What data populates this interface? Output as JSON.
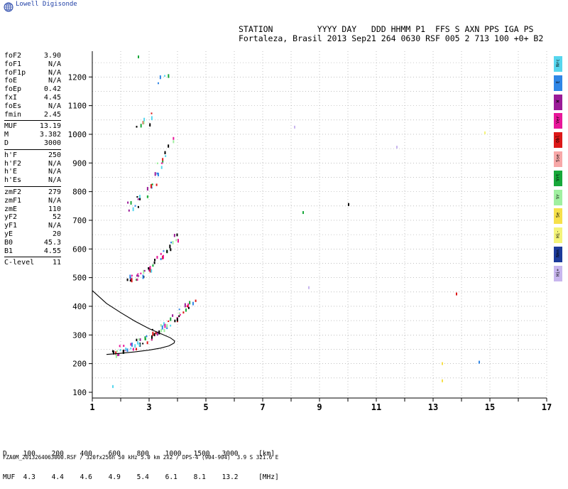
{
  "brand": "Lowell Digisonde",
  "header": {
    "line1": "STATION         YYYY DAY   DDD HHMM P1  FFS S AXN PPS IGA PS",
    "line2": "Fortaleza, Brasil 2013 Sep21 264 0630 RSF 005 2 713 100 +0+ B2"
  },
  "params": [
    {
      "k": "foF2",
      "v": "3.90"
    },
    {
      "k": "foF1",
      "v": "N/A"
    },
    {
      "k": "foF1p",
      "v": "N/A"
    },
    {
      "k": "foE",
      "v": "N/A"
    },
    {
      "k": "foEp",
      "v": "0.42"
    },
    {
      "k": "fxI",
      "v": "4.45"
    },
    {
      "k": "foEs",
      "v": "N/A"
    },
    {
      "k": "fmin",
      "v": "2.45"
    },
    {
      "sep": true
    },
    {
      "k": "MUF",
      "v": "13.19"
    },
    {
      "k": "M",
      "v": "3.382"
    },
    {
      "k": "D",
      "v": "3000"
    },
    {
      "sep": true
    },
    {
      "k": "h'F",
      "v": "250"
    },
    {
      "k": "h'F2",
      "v": "N/A"
    },
    {
      "k": "h'E",
      "v": "N/A"
    },
    {
      "k": "h'Es",
      "v": "N/A"
    },
    {
      "sep": true
    },
    {
      "k": "zmF2",
      "v": "279"
    },
    {
      "k": "zmF1",
      "v": "N/A"
    },
    {
      "k": "zmE",
      "v": "110"
    },
    {
      "k": "yF2",
      "v": "52"
    },
    {
      "k": "yF1",
      "v": "N/A"
    },
    {
      "k": "yE",
      "v": "20"
    },
    {
      "k": "B0",
      "v": "45.3"
    },
    {
      "k": "B1",
      "v": "4.55"
    },
    {
      "sep": true
    },
    {
      "k": "C-level",
      "v": "11"
    }
  ],
  "legend": [
    {
      "label": "Nrc",
      "color": "#57d6ee"
    },
    {
      "label": "E",
      "color": "#2f86e6"
    },
    {
      "label": "W",
      "color": "#9a1b97"
    },
    {
      "label": "Ver",
      "color": "#e8179a"
    },
    {
      "label": "Obl",
      "color": "#dd1818"
    },
    {
      "label": "Sse",
      "color": "#f7a8a8"
    },
    {
      "label": "Vrt",
      "color": "#18a83a"
    },
    {
      "label": "Vr",
      "color": "#a0f0a0"
    },
    {
      "label": "Se",
      "color": "#f6e04a"
    },
    {
      "label": "Hi-",
      "color": "#f4f47a"
    },
    {
      "label": "Nmn",
      "color": "#1c3a9a"
    },
    {
      "label": "Hi+",
      "color": "#c8b6ee"
    }
  ],
  "muf_table": {
    "d_label": "D",
    "d_values": [
      "100",
      "200",
      "400",
      "600",
      "800",
      "1000",
      "1500",
      "3000"
    ],
    "d_unit": "[km]",
    "muf_label": "MUF",
    "muf_values": [
      "4.3",
      "4.4",
      "4.6",
      "4.9",
      "5.4",
      "6.1",
      "8.1",
      "13.2"
    ],
    "muf_unit": "[MHz]"
  },
  "footer": "FZA0M_2013264063000.RSF / 320fx256h 50 kHz 5.0 km 2x2 / DPS-4 (904-904)  3.9 S 321.6 E",
  "chart_data": {
    "type": "scatter",
    "xlim": [
      1,
      17
    ],
    "ylim": [
      80,
      1290
    ],
    "x_ticks": [
      1,
      3,
      5,
      7,
      9,
      11,
      13,
      15,
      17
    ],
    "y_ticks": [
      100,
      200,
      300,
      400,
      500,
      600,
      700,
      800,
      900,
      1000,
      1100,
      1200
    ],
    "grid": true,
    "trace_profile": [
      [
        1.5,
        232
      ],
      [
        2.0,
        236
      ],
      [
        2.5,
        241
      ],
      [
        3.0,
        247
      ],
      [
        3.4,
        254
      ],
      [
        3.7,
        262
      ],
      [
        3.88,
        272
      ],
      [
        3.9,
        279
      ],
      [
        3.75,
        290
      ],
      [
        3.4,
        305
      ],
      [
        3.0,
        322
      ],
      [
        2.5,
        348
      ],
      [
        2.0,
        378
      ],
      [
        1.5,
        410
      ],
      [
        1.0,
        455
      ]
    ],
    "echo_traces": [
      {
        "f0": 1.7,
        "f1": 4.5,
        "h0": 245,
        "h1": 420,
        "n": 70
      },
      {
        "f0": 2.2,
        "f1": 4.0,
        "h0": 495,
        "h1": 650,
        "n": 40
      },
      {
        "f0": 2.3,
        "f1": 3.8,
        "h0": 750,
        "h1": 990,
        "n": 30
      },
      {
        "f0": 2.6,
        "f1": 3.0,
        "h0": 1030,
        "h1": 1070,
        "n": 8
      },
      {
        "f0": 3.4,
        "f1": 3.6,
        "h0": 1190,
        "h1": 1220,
        "n": 4
      }
    ],
    "outliers": [
      {
        "x": 1.7,
        "y": 125,
        "color": "#57d6ee"
      },
      {
        "x": 8.1,
        "y": 1030,
        "color": "#c8b6ee"
      },
      {
        "x": 8.4,
        "y": 732,
        "color": "#18a83a"
      },
      {
        "x": 8.6,
        "y": 470,
        "color": "#c8b6ee"
      },
      {
        "x": 10.0,
        "y": 760,
        "color": "#000000"
      },
      {
        "x": 11.7,
        "y": 960,
        "color": "#c8b6ee"
      },
      {
        "x": 13.3,
        "y": 205,
        "color": "#f6e04a"
      },
      {
        "x": 13.3,
        "y": 145,
        "color": "#f6e04a"
      },
      {
        "x": 13.8,
        "y": 448,
        "color": "#dd1818"
      },
      {
        "x": 14.6,
        "y": 210,
        "color": "#2f86e6"
      },
      {
        "x": 14.8,
        "y": 1010,
        "color": "#f4f47a"
      },
      {
        "x": 2.6,
        "y": 1275,
        "color": "#18a83a"
      }
    ]
  }
}
